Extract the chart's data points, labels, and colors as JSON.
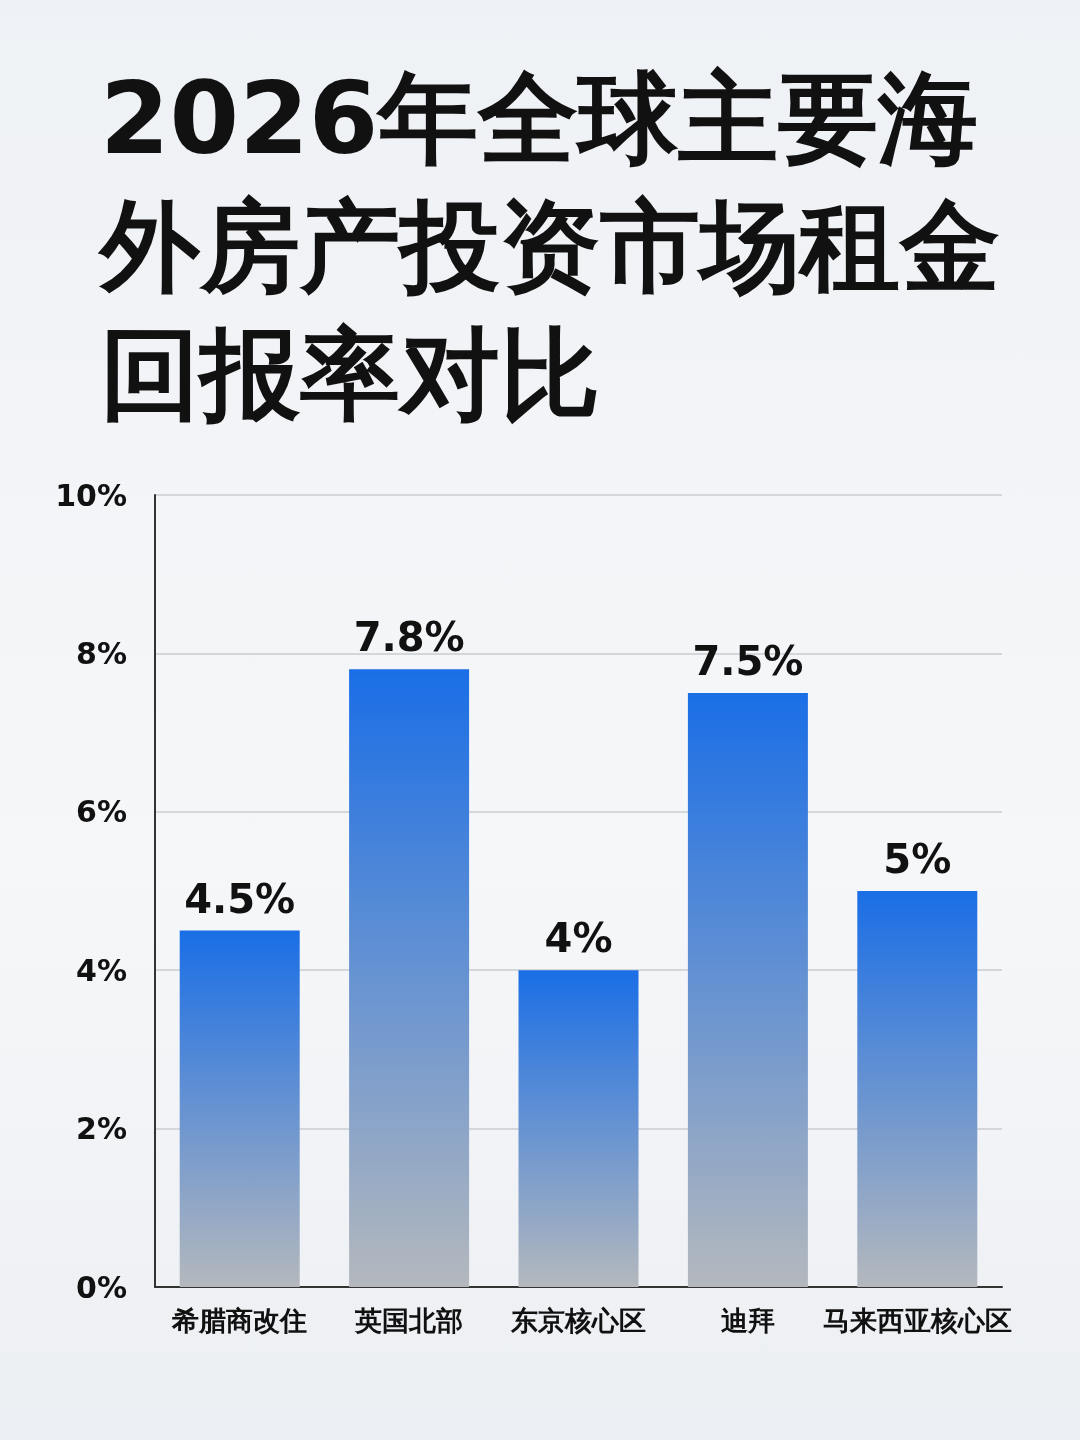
{
  "chart_data": {
    "type": "bar",
    "title": "2026年全球主要海外房产投资市场租金回报率对比",
    "categories": [
      "希腊商改住",
      "英国北部",
      "东京核心区",
      "迪拜",
      "马来西亚核心区"
    ],
    "values": [
      4.5,
      7.8,
      4,
      7.5,
      5
    ],
    "color": "#1a6ee6",
    "ylim": [
      0,
      10
    ],
    "yticks": [
      {
        "value": 0,
        "label": "0%"
      },
      {
        "value": 2,
        "label": "2%"
      },
      {
        "value": 4,
        "label": "4%"
      },
      {
        "value": 6,
        "label": "6%"
      },
      {
        "value": 8,
        "label": "8%"
      },
      {
        "value": 10,
        "label": "10%"
      }
    ],
    "value_labels": [
      "4.5%",
      "7.8%",
      "4%",
      "7.5%",
      "5%"
    ],
    "grid": "y"
  }
}
